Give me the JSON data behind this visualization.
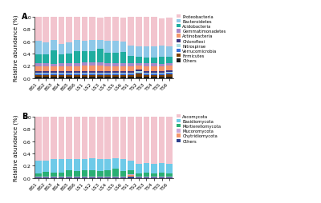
{
  "categories": [
    "BS1",
    "BS2",
    "BS3",
    "BS4",
    "BS5",
    "BS6",
    "LS1",
    "LS2",
    "LS3",
    "LS4",
    "LS5",
    "LS6",
    "TS1",
    "TS2",
    "TS3",
    "TS4",
    "TS5",
    "TS6"
  ],
  "panel_A": {
    "title": "A",
    "ylabel": "Relative abundance (%)",
    "legend_labels": [
      "Others",
      "Firmicutes",
      "Verrucomicrobia",
      "Nitrospirae",
      "Chloroflexi",
      "Actinobacteria",
      "Gemmatimonadetes",
      "Acidobacteria",
      "Bacteroidetes",
      "Proteobacteria"
    ],
    "colors": [
      "#1a1a1a",
      "#7B3F00",
      "#3A6FD8",
      "#AADCE0",
      "#3D3580",
      "#F4956A",
      "#A888C8",
      "#1FAD9F",
      "#8EC8E8",
      "#F2C4CE"
    ],
    "data": [
      [
        0.03,
        0.03,
        0.03,
        0.03,
        0.03,
        0.03,
        0.03,
        0.03,
        0.03,
        0.03,
        0.03,
        0.03,
        0.03,
        0.03,
        0.03,
        0.03,
        0.03,
        0.03
      ],
      [
        0.02,
        0.02,
        0.02,
        0.02,
        0.02,
        0.02,
        0.02,
        0.02,
        0.02,
        0.02,
        0.02,
        0.02,
        0.02,
        0.04,
        0.02,
        0.02,
        0.02,
        0.03
      ],
      [
        0.025,
        0.025,
        0.025,
        0.025,
        0.025,
        0.025,
        0.025,
        0.025,
        0.025,
        0.025,
        0.025,
        0.025,
        0.025,
        0.025,
        0.025,
        0.025,
        0.025,
        0.025
      ],
      [
        0.015,
        0.015,
        0.015,
        0.015,
        0.015,
        0.015,
        0.015,
        0.015,
        0.015,
        0.015,
        0.015,
        0.015,
        0.015,
        0.015,
        0.015,
        0.015,
        0.015,
        0.015
      ],
      [
        0.03,
        0.03,
        0.03,
        0.03,
        0.03,
        0.03,
        0.03,
        0.03,
        0.03,
        0.03,
        0.03,
        0.03,
        0.03,
        0.03,
        0.03,
        0.03,
        0.03,
        0.03
      ],
      [
        0.075,
        0.075,
        0.075,
        0.075,
        0.075,
        0.075,
        0.085,
        0.085,
        0.085,
        0.075,
        0.075,
        0.075,
        0.07,
        0.07,
        0.07,
        0.07,
        0.075,
        0.07
      ],
      [
        0.05,
        0.05,
        0.04,
        0.05,
        0.05,
        0.05,
        0.05,
        0.05,
        0.05,
        0.05,
        0.05,
        0.05,
        0.05,
        0.04,
        0.05,
        0.05,
        0.04,
        0.04
      ],
      [
        0.15,
        0.14,
        0.22,
        0.14,
        0.16,
        0.2,
        0.18,
        0.19,
        0.22,
        0.17,
        0.17,
        0.18,
        0.12,
        0.1,
        0.1,
        0.1,
        0.12,
        0.11
      ],
      [
        0.22,
        0.2,
        0.175,
        0.175,
        0.175,
        0.175,
        0.175,
        0.175,
        0.155,
        0.195,
        0.195,
        0.175,
        0.175,
        0.175,
        0.175,
        0.175,
        0.175,
        0.175
      ],
      [
        0.385,
        0.415,
        0.37,
        0.44,
        0.42,
        0.38,
        0.39,
        0.38,
        0.365,
        0.39,
        0.39,
        0.395,
        0.465,
        0.475,
        0.485,
        0.485,
        0.45,
        0.465
      ]
    ]
  },
  "panel_B": {
    "title": "B",
    "ylabel": "Relative abundance (%)",
    "legend_labels": [
      "Others",
      "Chytridiomycota",
      "Mucoromycota",
      "Mortierellomycota",
      "Basidiomycota",
      "Ascomycota"
    ],
    "colors": [
      "#2B3F8C",
      "#F4956A",
      "#C8A8D8",
      "#2AAF74",
      "#6ECAE8",
      "#F2C4CE"
    ],
    "data": [
      [
        0.01,
        0.01,
        0.01,
        0.01,
        0.01,
        0.01,
        0.01,
        0.01,
        0.01,
        0.01,
        0.01,
        0.01,
        0.02,
        0.01,
        0.01,
        0.01,
        0.01,
        0.01
      ],
      [
        0.005,
        0.005,
        0.005,
        0.005,
        0.005,
        0.005,
        0.005,
        0.005,
        0.005,
        0.005,
        0.005,
        0.005,
        0.03,
        0.005,
        0.005,
        0.005,
        0.005,
        0.005
      ],
      [
        0.015,
        0.015,
        0.015,
        0.015,
        0.015,
        0.015,
        0.015,
        0.015,
        0.015,
        0.015,
        0.015,
        0.015,
        0.015,
        0.015,
        0.015,
        0.015,
        0.015,
        0.015
      ],
      [
        0.05,
        0.07,
        0.06,
        0.06,
        0.1,
        0.08,
        0.1,
        0.1,
        0.08,
        0.1,
        0.12,
        0.08,
        0.06,
        0.05,
        0.06,
        0.05,
        0.06,
        0.05
      ],
      [
        0.21,
        0.19,
        0.22,
        0.22,
        0.175,
        0.2,
        0.185,
        0.2,
        0.2,
        0.18,
        0.175,
        0.2,
        0.16,
        0.15,
        0.16,
        0.15,
        0.16,
        0.15
      ],
      [
        0.71,
        0.71,
        0.69,
        0.69,
        0.695,
        0.69,
        0.685,
        0.67,
        0.69,
        0.69,
        0.675,
        0.69,
        0.715,
        0.77,
        0.75,
        0.77,
        0.75,
        0.77
      ]
    ]
  },
  "figsize": [
    4.0,
    2.55
  ],
  "dpi": 100
}
